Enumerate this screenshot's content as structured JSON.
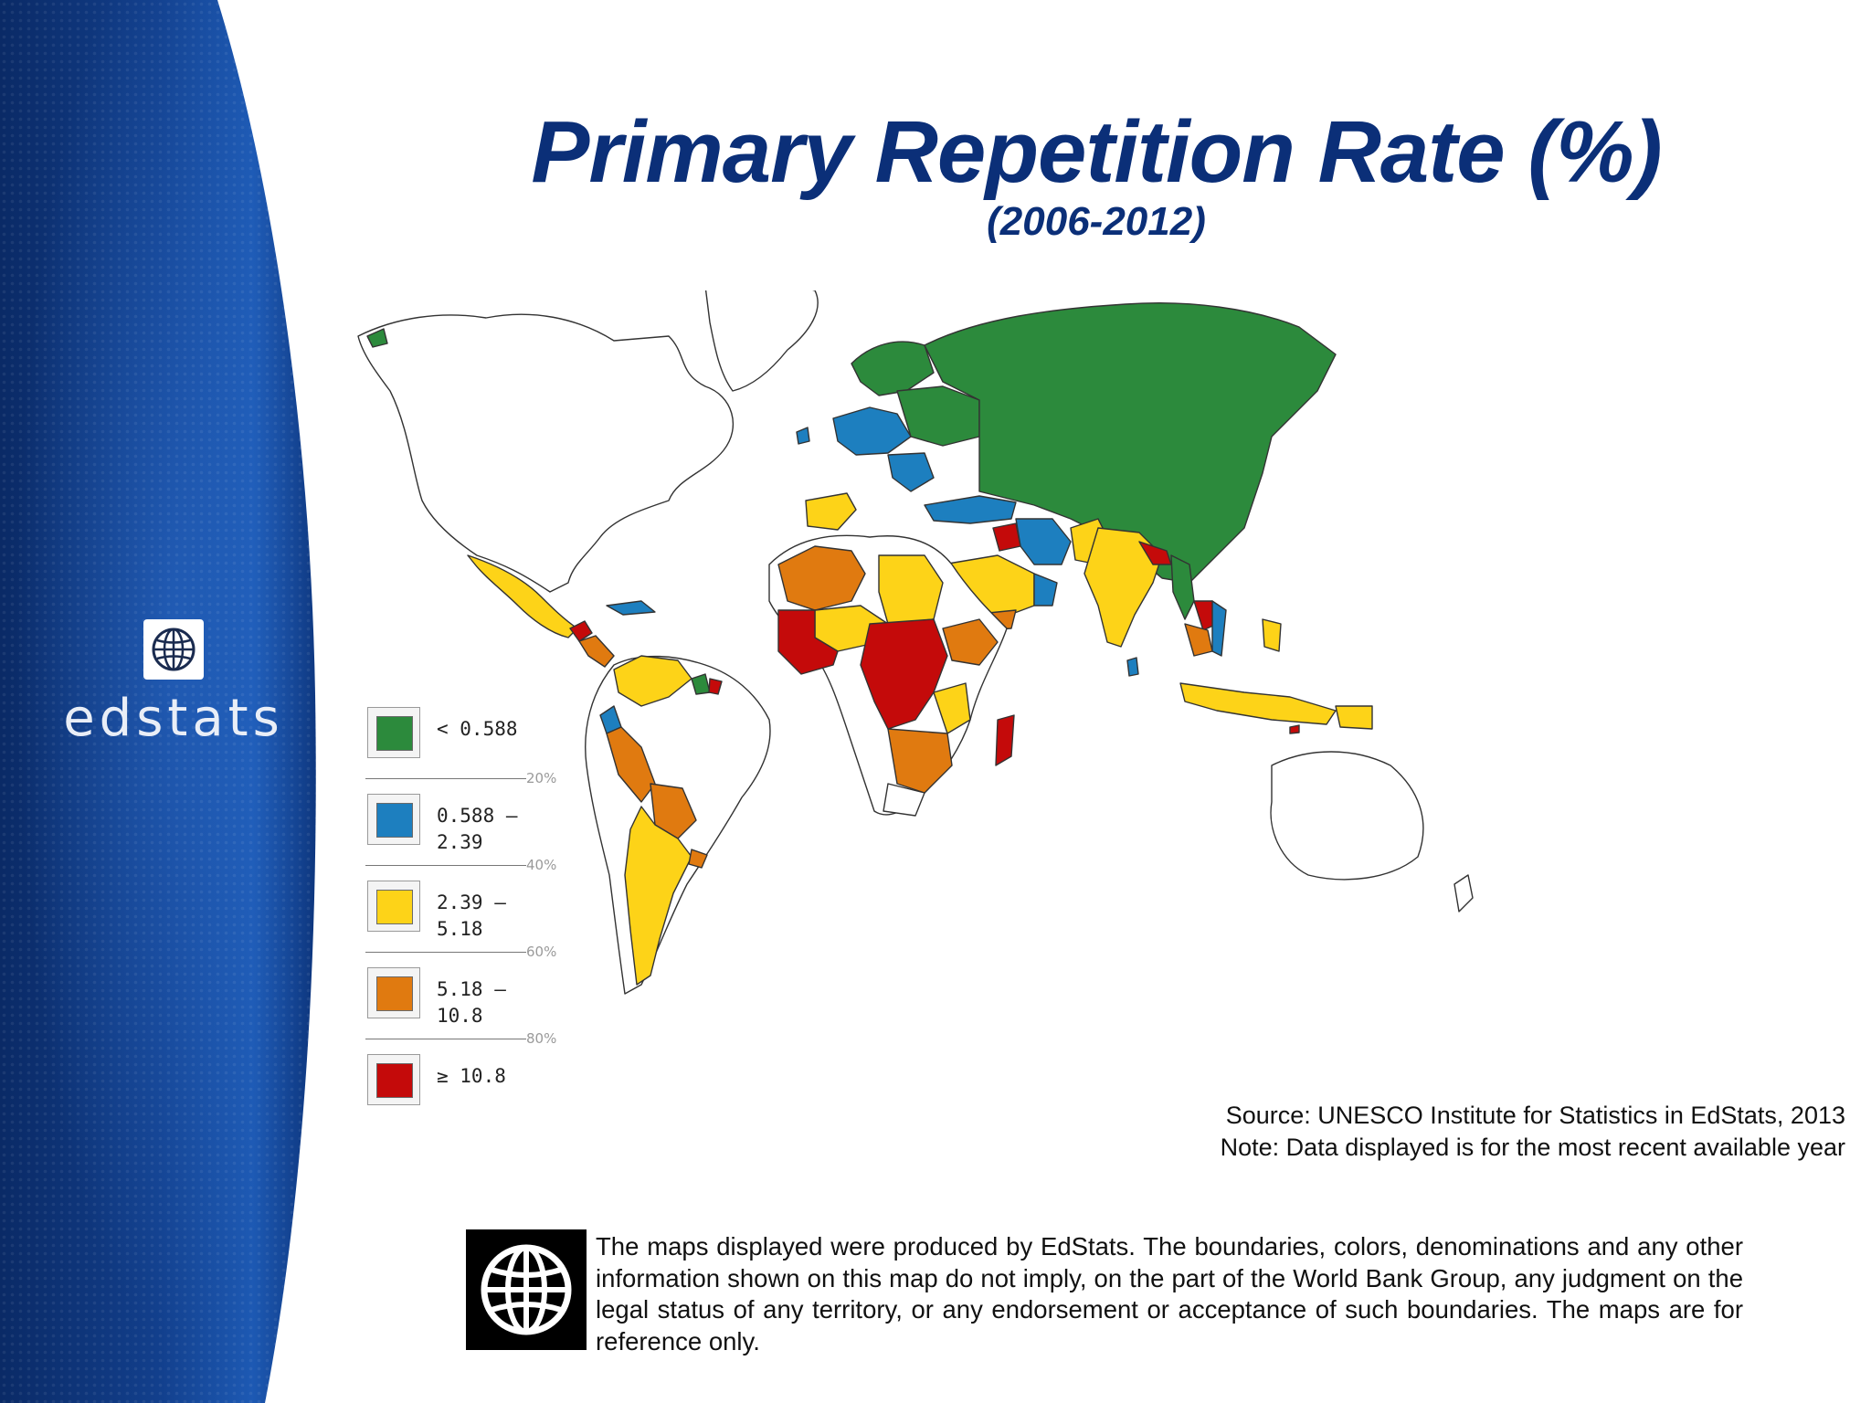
{
  "title": "Primary Repetition Rate (%)",
  "subtitle": "(2006-2012)",
  "branding": {
    "logo_text": "edstats",
    "logo_icon": "globe-icon"
  },
  "legend": {
    "items": [
      {
        "label": "< 0.588",
        "color": "#2c8a3c"
      },
      {
        "label": "0.588 –\n2.39",
        "color": "#1d7fbf"
      },
      {
        "label": "2.39 –\n5.18",
        "color": "#fdd318"
      },
      {
        "label": "5.18 –\n10.8",
        "color": "#e07a10"
      },
      {
        "label": "≥ 10.8",
        "color": "#c40a0a"
      }
    ],
    "percentiles": [
      "20%",
      "40%",
      "60%",
      "80%"
    ]
  },
  "colors": {
    "no_data": "#ffffff",
    "title": "#0b2f78",
    "band_dark": "#082a6a",
    "band_light": "#1d57b0"
  },
  "source": {
    "line1": "Source: UNESCO Institute for Statistics in EdStats, 2013",
    "line2": "Note: Data displayed is for the most recent available year"
  },
  "disclaimer": {
    "text": "The maps displayed were produced by EdStats. The boundaries, colors, denominations and any other information shown on this map do not imply, on the part of the World Bank Group, any judgment on the legal status of any territory, or any endorsement or acceptance of such boundaries. The maps are for reference only.",
    "logo_icon": "world-bank-globe-icon"
  }
}
